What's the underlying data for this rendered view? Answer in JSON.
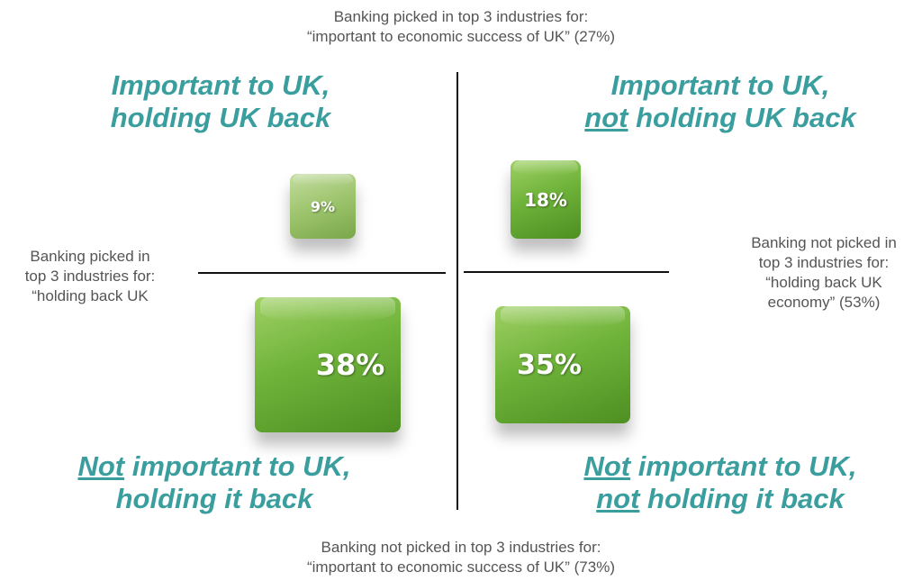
{
  "axes": {
    "top": [
      "Banking picked in top 3 industries for:",
      "“important to economic success of UK” (27%)"
    ],
    "bottom": [
      "Banking not picked in top 3 industries for:",
      "“important to economic success of UK” (73%)"
    ],
    "left": [
      "Banking picked in",
      "top 3 industries for:",
      "“holding back UK"
    ],
    "right": [
      "Banking not picked in",
      "top 3 industries for:",
      "“holding back UK",
      "economy” (53%)"
    ]
  },
  "quadrants": [
    {
      "title": [
        [
          "Important to UK,"
        ],
        [
          "holding UK back"
        ]
      ],
      "value": "9%"
    },
    {
      "title": [
        [
          "Important to UK,"
        ],
        [
          "not",
          " holding UK back"
        ]
      ],
      "value": "18%"
    },
    {
      "title": [
        [
          "Not",
          " important to UK,"
        ],
        [
          "holding it back"
        ]
      ],
      "value": "38%"
    },
    {
      "title": [
        [
          "Not",
          " important to UK,"
        ],
        [
          "not",
          " holding it back"
        ]
      ],
      "value": "35%"
    }
  ]
}
